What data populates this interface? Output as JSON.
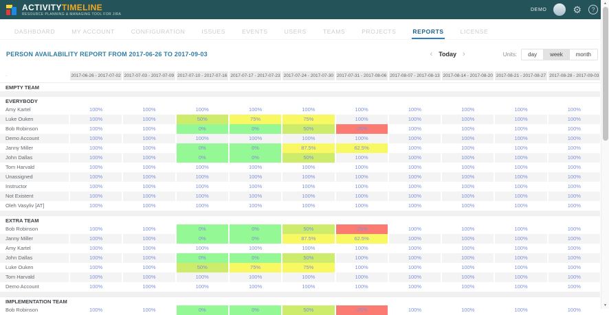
{
  "app": {
    "logo_title_1": "ACTIVITY",
    "logo_title_2": "TIMELINE",
    "logo_subtitle": "RESOURCE PLANNING & MANAGING TOOL FOR JIRA",
    "user_label": "DEMO"
  },
  "nav": {
    "items": [
      {
        "label": "DASHBOARD",
        "active": false
      },
      {
        "label": "MY ACCOUNT",
        "active": false
      },
      {
        "label": "CONFIGURATION",
        "active": false
      },
      {
        "label": "ISSUES",
        "active": false
      },
      {
        "label": "EVENTS",
        "active": false
      },
      {
        "label": "USERS",
        "active": false
      },
      {
        "label": "TEAMS",
        "active": false
      },
      {
        "label": "PROJECTS",
        "active": false
      },
      {
        "label": "REPORTS",
        "active": true
      },
      {
        "label": "LICENSE",
        "active": false
      }
    ]
  },
  "report": {
    "title": "PERSON AVAILABILITY REPORT FROM 2017-06-26 TO 2017-09-03",
    "prev_arrow": "‹",
    "today_label": "Today",
    "next_arrow": "›",
    "units_label": "Units:",
    "units": [
      {
        "label": "day",
        "selected": false
      },
      {
        "label": "week",
        "selected": true
      },
      {
        "label": "month",
        "selected": false
      }
    ]
  },
  "table": {
    "corner_label": "·",
    "columns": [
      "2017-06-26 - 2017-07-02",
      "2017-07-03 - 2017-07-09",
      "2017-07-10 - 2017-07-16",
      "2017-07-17 - 2017-07-23",
      "2017-07-24 - 2017-07-30",
      "2017-07-31 - 2017-08-06",
      "2017-08-07 - 2017-08-13",
      "2017-08-14 - 2017-08-20",
      "2017-08-21 - 2017-08-27",
      "2017-08-28 - 2017-09-03"
    ],
    "sections": [
      {
        "name": "EMPTY TEAM",
        "rows": []
      },
      {
        "name": "EVERYBODY",
        "rows": [
          {
            "person": "Amy Kartel",
            "values": [
              "100%",
              "100%",
              "100%",
              "100%",
              "100%",
              "100%",
              "100%",
              "100%",
              "100%",
              "100%"
            ]
          },
          {
            "person": "Luke Ouken",
            "values": [
              "100%",
              "100%",
              "50%",
              "75%",
              "75%",
              "100%",
              "100%",
              "100%",
              "100%",
              "100%"
            ]
          },
          {
            "person": "Bob Robinson",
            "values": [
              "100%",
              "100%",
              "0%",
              "0%",
              "50%",
              "-25%",
              "100%",
              "100%",
              "100%",
              "100%"
            ]
          },
          {
            "person": "Demo Account",
            "values": [
              "100%",
              "100%",
              "100%",
              "100%",
              "100%",
              "100%",
              "100%",
              "100%",
              "100%",
              "100%"
            ]
          },
          {
            "person": "Janny Miller",
            "values": [
              "100%",
              "100%",
              "0%",
              "0%",
              "87.5%",
              "62.5%",
              "100%",
              "100%",
              "100%",
              "100%"
            ]
          },
          {
            "person": "John Dallas",
            "values": [
              "100%",
              "100%",
              "0%",
              "0%",
              "50%",
              "100%",
              "100%",
              "100%",
              "100%",
              "100%"
            ]
          },
          {
            "person": "Tom Harvald",
            "values": [
              "100%",
              "100%",
              "100%",
              "100%",
              "100%",
              "100%",
              "100%",
              "100%",
              "100%",
              "100%"
            ]
          },
          {
            "person": "Unassigned",
            "values": [
              "100%",
              "100%",
              "100%",
              "100%",
              "100%",
              "100%",
              "100%",
              "100%",
              "100%",
              "100%"
            ]
          },
          {
            "person": "Instructor",
            "values": [
              "100%",
              "100%",
              "100%",
              "100%",
              "100%",
              "100%",
              "100%",
              "100%",
              "100%",
              "100%"
            ]
          },
          {
            "person": "Not Existent",
            "values": [
              "100%",
              "100%",
              "100%",
              "100%",
              "100%",
              "100%",
              "100%",
              "100%",
              "100%",
              "100%"
            ]
          },
          {
            "person": "Oleh Vasyliv [AT]",
            "values": [
              "100%",
              "100%",
              "100%",
              "100%",
              "100%",
              "100%",
              "100%",
              "100%",
              "100%",
              "100%"
            ]
          }
        ]
      },
      {
        "name": "EXTRA TEAM",
        "rows": [
          {
            "person": "Bob Robinson",
            "values": [
              "100%",
              "100%",
              "0%",
              "0%",
              "50%",
              "-25%",
              "100%",
              "100%",
              "100%",
              "100%"
            ]
          },
          {
            "person": "Janny Miller",
            "values": [
              "100%",
              "100%",
              "0%",
              "0%",
              "87.5%",
              "62.5%",
              "100%",
              "100%",
              "100%",
              "100%"
            ]
          },
          {
            "person": "Amy Kartel",
            "values": [
              "100%",
              "100%",
              "100%",
              "100%",
              "100%",
              "100%",
              "100%",
              "100%",
              "100%",
              "100%"
            ]
          },
          {
            "person": "John Dallas",
            "values": [
              "100%",
              "100%",
              "0%",
              "0%",
              "50%",
              "100%",
              "100%",
              "100%",
              "100%",
              "100%"
            ]
          },
          {
            "person": "Luke Ouken",
            "values": [
              "100%",
              "100%",
              "50%",
              "75%",
              "75%",
              "100%",
              "100%",
              "100%",
              "100%",
              "100%"
            ]
          },
          {
            "person": "Tom Harvald",
            "values": [
              "100%",
              "100%",
              "100%",
              "100%",
              "100%",
              "100%",
              "100%",
              "100%",
              "100%",
              "100%"
            ]
          },
          {
            "person": "Demo Account",
            "values": [
              "100%",
              "100%",
              "100%",
              "100%",
              "100%",
              "100%",
              "100%",
              "100%",
              "100%",
              "100%"
            ]
          }
        ]
      },
      {
        "name": "IMPLEMENTATION TEAM",
        "rows": [
          {
            "person": "Bob Robinson",
            "values": [
              "100%",
              "100%",
              "0%",
              "0%",
              "50%",
              "-25%",
              "100%",
              "100%",
              "100%",
              "100%"
            ]
          }
        ]
      }
    ]
  },
  "colors": {
    "header_teal": "#24545A",
    "brand_orange": "#F6A71F",
    "active_tab_blue": "#17648C",
    "value_text_blue": "#7D90DA",
    "free_green": "#94F894",
    "partial_green_yellow": "#CDEC6B",
    "partial_yellow": "#F8F863",
    "overbooked_red": "#FB7A72"
  }
}
